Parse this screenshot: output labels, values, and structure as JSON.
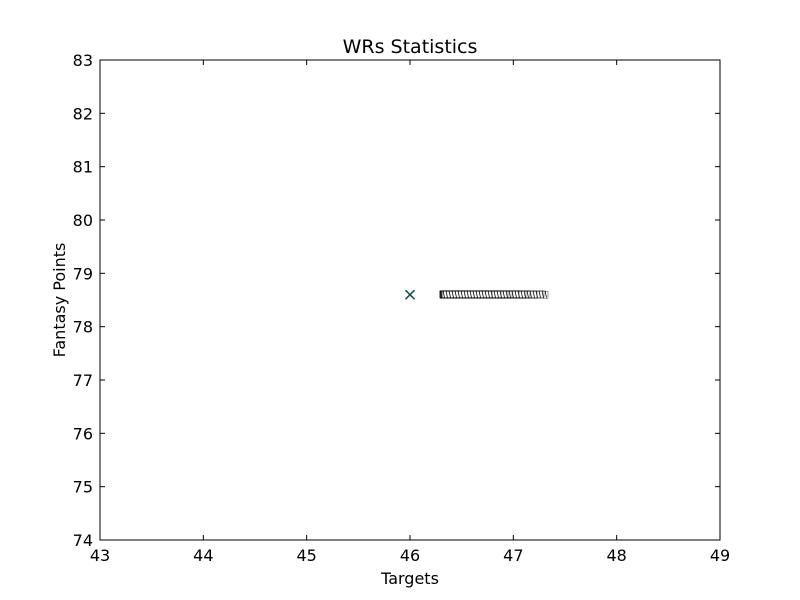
{
  "chart_data": {
    "type": "scatter",
    "title": "WRs Statistics",
    "xlabel": "Targets",
    "ylabel": "Fantasy Points",
    "xlim": [
      43,
      49
    ],
    "ylim": [
      74,
      83
    ],
    "xticks": [
      "43",
      "44",
      "45",
      "46",
      "47",
      "48",
      "49"
    ],
    "yticks": [
      "74",
      "75",
      "76",
      "77",
      "78",
      "79",
      "80",
      "81",
      "82",
      "83"
    ],
    "grid": false,
    "marker": "x",
    "marker_color": "#1f4e4e",
    "points": [
      {
        "x": 46,
        "y": 78.6
      }
    ]
  }
}
